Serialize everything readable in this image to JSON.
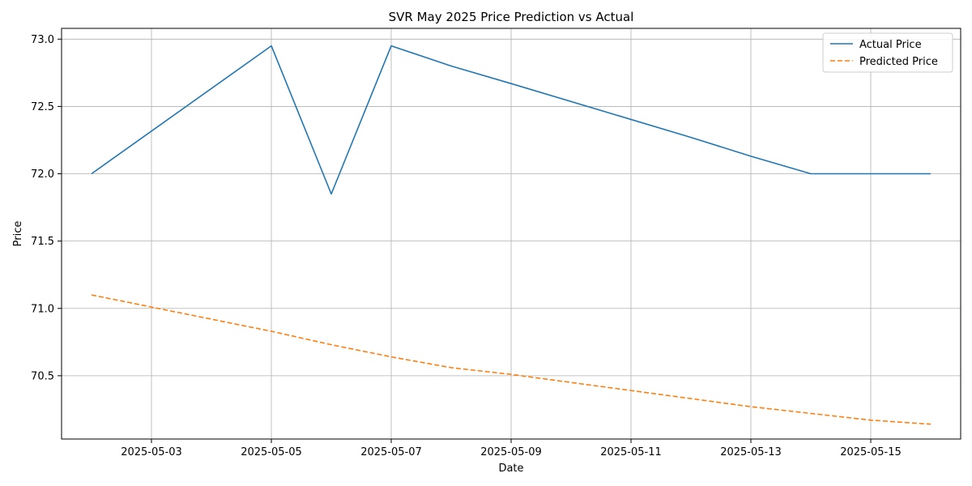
{
  "chart_data": {
    "type": "line",
    "title": "SVR May 2025 Price Prediction vs Actual",
    "xlabel": "Date",
    "ylabel": "Price",
    "x": [
      "2025-05-02",
      "2025-05-05",
      "2025-05-06",
      "2025-05-07",
      "2025-05-08",
      "2025-05-09",
      "2025-05-12",
      "2025-05-13",
      "2025-05-14",
      "2025-05-15",
      "2025-05-16"
    ],
    "xlim": [
      "2025-05-01T12:00",
      "2025-05-16T12:00"
    ],
    "ylim": [
      70.03,
      73.08
    ],
    "x_ticks": [
      "2025-05-03",
      "2025-05-05",
      "2025-05-07",
      "2025-05-09",
      "2025-05-11",
      "2025-05-13",
      "2025-05-15"
    ],
    "y_ticks": [
      "70.5",
      "71.0",
      "71.5",
      "72.0",
      "72.5",
      "73.0"
    ],
    "grid": true,
    "legend_position": "top-right",
    "series": [
      {
        "name": "Actual Price",
        "color": "#1f77b4",
        "style": "solid",
        "values": [
          72.0,
          72.95,
          71.85,
          72.95,
          72.8,
          72.67,
          72.27,
          72.13,
          72.0,
          72.0,
          72.0
        ]
      },
      {
        "name": "Predicted Price",
        "color": "#ff7f0e",
        "style": "dashed",
        "values": [
          71.1,
          70.83,
          70.73,
          70.64,
          70.56,
          70.51,
          70.33,
          70.27,
          70.22,
          70.17,
          70.14
        ]
      }
    ]
  }
}
